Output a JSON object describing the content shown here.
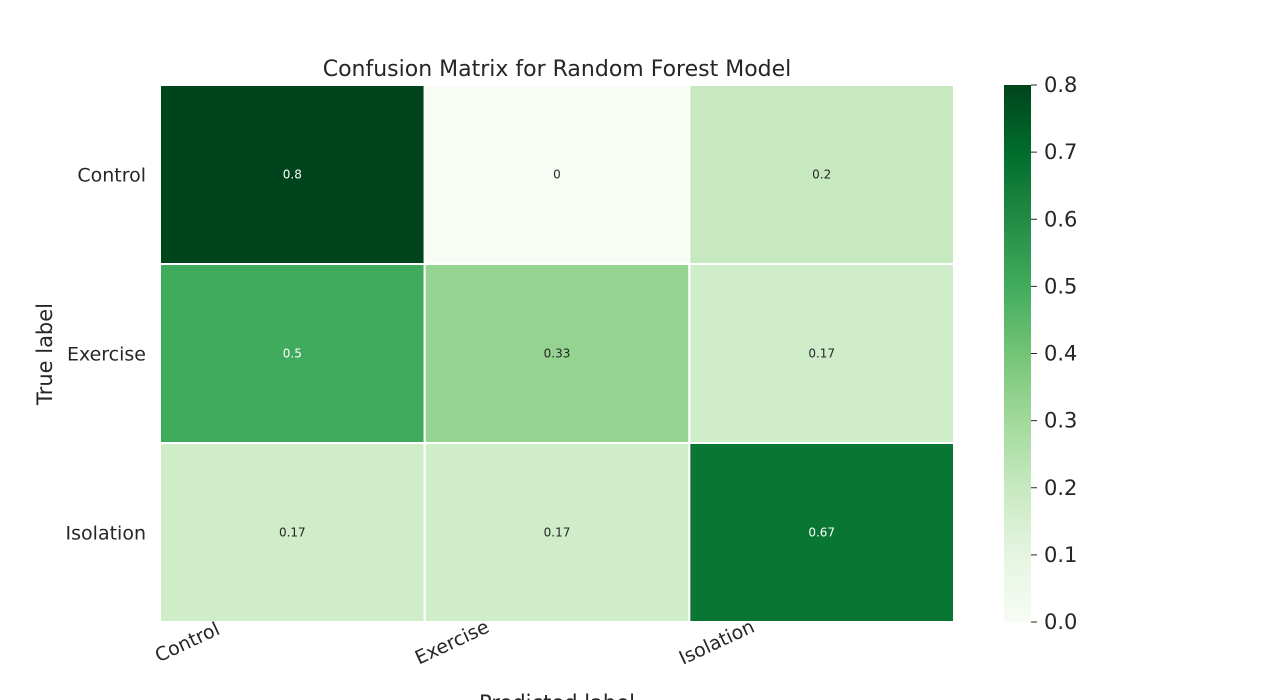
{
  "chart_data": {
    "type": "heatmap",
    "title": "Confusion Matrix for Random Forest Model",
    "xlabel": "Predicted label",
    "ylabel": "True label",
    "x_categories": [
      "Control",
      "Exercise",
      "Isolation"
    ],
    "y_categories": [
      "Control",
      "Exercise",
      "Isolation"
    ],
    "values": [
      [
        0.8,
        0,
        0.2
      ],
      [
        0.5,
        0.33,
        0.17
      ],
      [
        0.17,
        0.17,
        0.67
      ]
    ],
    "colorbar": {
      "min": 0.0,
      "max": 0.8,
      "ticks": [
        "0.0",
        "0.1",
        "0.2",
        "0.3",
        "0.4",
        "0.5",
        "0.6",
        "0.7",
        "0.8"
      ]
    },
    "colormap": "Greens",
    "colors": {
      "low": "#f7fcf5",
      "high": "#00441b",
      "text_dark": "#262626",
      "text_light": "#ffffff",
      "gridline": "#ffffff"
    }
  }
}
